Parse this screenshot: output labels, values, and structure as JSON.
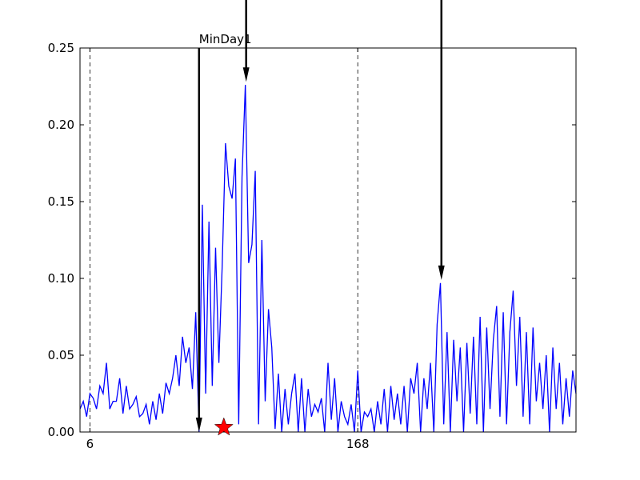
{
  "chart_data": {
    "type": "line",
    "x": [
      0,
      2,
      4,
      6,
      8,
      10,
      12,
      14,
      16,
      18,
      20,
      22,
      24,
      26,
      28,
      30,
      32,
      34,
      36,
      38,
      40,
      42,
      44,
      46,
      48,
      50,
      52,
      54,
      56,
      58,
      60,
      62,
      64,
      66,
      68,
      70,
      72,
      74,
      76,
      78,
      80,
      82,
      84,
      86,
      88,
      90,
      92,
      94,
      96,
      98,
      100,
      102,
      104,
      106,
      108,
      110,
      112,
      114,
      116,
      118,
      120,
      122,
      124,
      126,
      128,
      130,
      132,
      134,
      136,
      138,
      140,
      142,
      144,
      146,
      148,
      150,
      152,
      154,
      156,
      158,
      160,
      162,
      164,
      166,
      168,
      170,
      172,
      174,
      176,
      178,
      180,
      182,
      184,
      186,
      188,
      190,
      192,
      194,
      196,
      198,
      200,
      202,
      204,
      206,
      208,
      210,
      212,
      214,
      216,
      218,
      220,
      222,
      224,
      226,
      228,
      230,
      232,
      234,
      236,
      238,
      240,
      242,
      244,
      246,
      248,
      250,
      252,
      254,
      256,
      258,
      260,
      262,
      264,
      266,
      268,
      270,
      272,
      274,
      276,
      278,
      280,
      282,
      284,
      286,
      288,
      290,
      292,
      294,
      296,
      298,
      300
    ],
    "values": [
      0.015,
      0.02,
      0.01,
      0.025,
      0.022,
      0.015,
      0.03,
      0.025,
      0.045,
      0.015,
      0.02,
      0.02,
      0.035,
      0.012,
      0.03,
      0.015,
      0.018,
      0.023,
      0.01,
      0.012,
      0.018,
      0.005,
      0.02,
      0.008,
      0.025,
      0.012,
      0.032,
      0.025,
      0.035,
      0.05,
      0.03,
      0.062,
      0.045,
      0.055,
      0.028,
      0.078,
      0.0,
      0.148,
      0.025,
      0.137,
      0.03,
      0.12,
      0.045,
      0.108,
      0.188,
      0.16,
      0.152,
      0.178,
      0.005,
      0.166,
      0.226,
      0.11,
      0.122,
      0.17,
      0.005,
      0.125,
      0.02,
      0.08,
      0.055,
      0.002,
      0.038,
      0.0,
      0.028,
      0.005,
      0.025,
      0.038,
      0.0,
      0.035,
      0.0,
      0.028,
      0.01,
      0.018,
      0.013,
      0.022,
      0.0,
      0.045,
      0.008,
      0.035,
      0.0,
      0.02,
      0.01,
      0.005,
      0.018,
      0.0,
      0.04,
      0.0,
      0.013,
      0.01,
      0.015,
      0.0,
      0.02,
      0.005,
      0.028,
      0.0,
      0.03,
      0.008,
      0.025,
      0.005,
      0.03,
      0.0,
      0.035,
      0.025,
      0.045,
      0.0,
      0.035,
      0.015,
      0.045,
      0.0,
      0.07,
      0.097,
      0.005,
      0.065,
      0.0,
      0.06,
      0.02,
      0.055,
      0.0,
      0.058,
      0.012,
      0.062,
      0.005,
      0.075,
      0.0,
      0.068,
      0.015,
      0.06,
      0.082,
      0.01,
      0.078,
      0.005,
      0.065,
      0.092,
      0.03,
      0.075,
      0.01,
      0.065,
      0.005,
      0.068,
      0.02,
      0.045,
      0.015,
      0.05,
      0.0,
      0.055,
      0.015,
      0.045,
      0.005,
      0.035,
      0.01,
      0.04,
      0.025
    ],
    "color": "#0000ff",
    "xlim": [
      0,
      300
    ],
    "ylim": [
      0,
      0.25
    ],
    "xticks": [
      6,
      168
    ],
    "yticks": [
      {
        "value": 0,
        "label": "0.00"
      },
      {
        "value": 0.05,
        "label": "0.05"
      },
      {
        "value": 0.1,
        "label": "0.10"
      },
      {
        "value": 0.15,
        "label": "0.15"
      },
      {
        "value": 0.2,
        "label": "0.20"
      },
      {
        "value": 0.25,
        "label": "0.25"
      }
    ],
    "vlines": [
      6,
      168
    ],
    "annotations": [
      {
        "text": "MinDay1",
        "xy": [
          72,
          0
        ],
        "xytext": [
          72,
          0.25
        ]
      },
      {
        "xy": [
          100.5,
          0.228
        ],
        "xytext": [
          100.5,
          0.285
        ]
      },
      {
        "xy": [
          218.6,
          0.099
        ],
        "xytext": [
          218.6,
          0.285
        ]
      }
    ],
    "markers": [
      {
        "x": 87,
        "y": 0.003,
        "color": "#ff0000"
      }
    ]
  }
}
